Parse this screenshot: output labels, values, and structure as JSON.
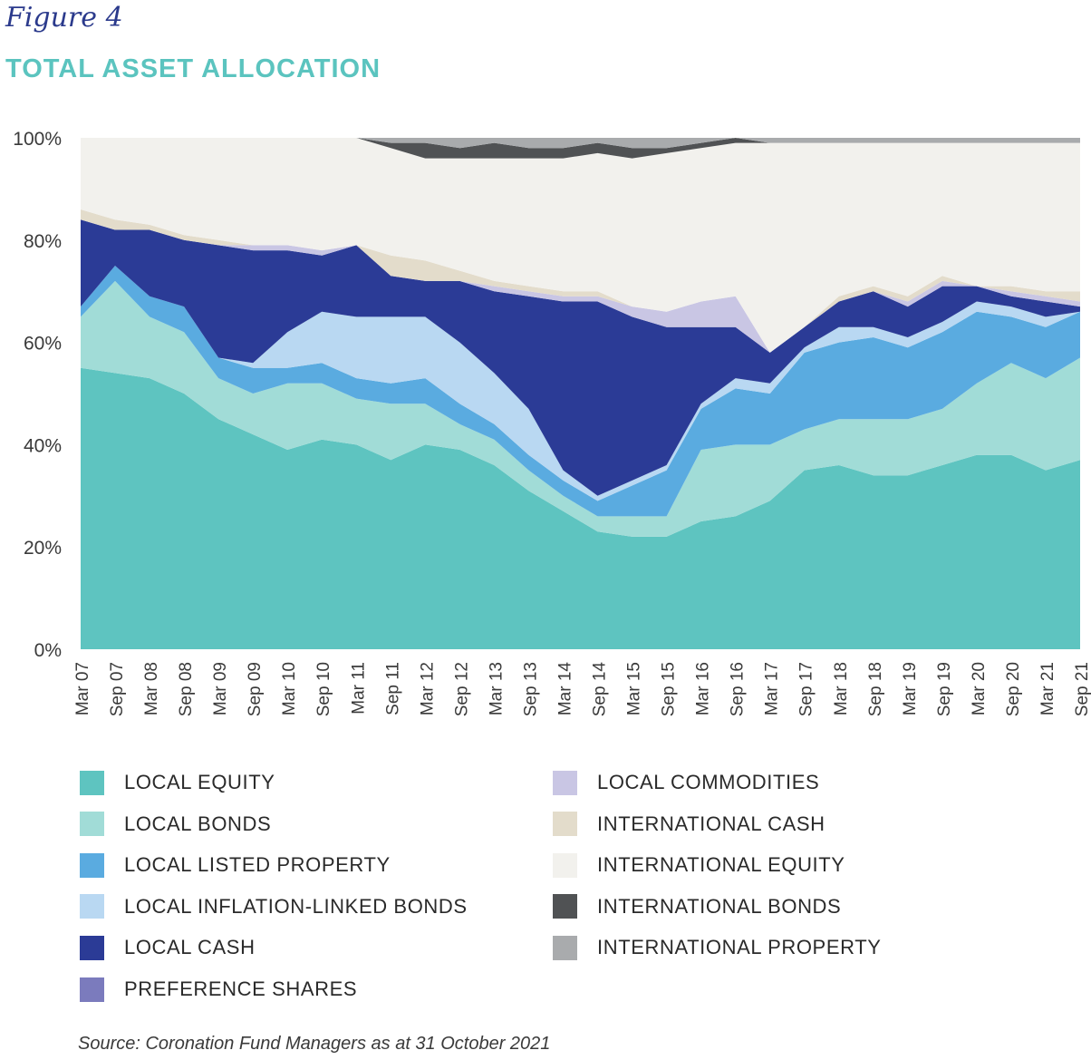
{
  "figure_label": "Figure 4",
  "title": "TOTAL ASSET ALLOCATION",
  "source": "Source: Coronation Fund Managers as at 31 October 2021",
  "chart_data": {
    "type": "area",
    "stacked": true,
    "title": "TOTAL ASSET ALLOCATION",
    "ylim": [
      0,
      100
    ],
    "yticks": [
      "0%",
      "20%",
      "40%",
      "60%",
      "80%",
      "100%"
    ],
    "xticks": [
      "Mar 07",
      "Sep 07",
      "Mar 08",
      "Sep 08",
      "Mar 09",
      "Sep 09",
      "Mar 10",
      "Sep 10",
      "Mar 11",
      "Sep 11",
      "Mar 12",
      "Sep 12",
      "Mar 13",
      "Sep 13",
      "Mar 14",
      "Sep 14",
      "Mar 15",
      "Sep 15",
      "Mar 16",
      "Sep 16",
      "Mar 17",
      "Sep 17",
      "Mar 18",
      "Sep 18",
      "Mar 19",
      "Sep 19",
      "Mar 20",
      "Sep 20",
      "Mar 21",
      "Sep 21"
    ],
    "legend_placement": "bottom",
    "series": [
      {
        "name": "LOCAL EQUITY",
        "color": "#5ec4c0",
        "values": [
          55,
          54,
          53,
          50,
          45,
          42,
          39,
          41,
          40,
          37,
          40,
          39,
          36,
          31,
          27,
          23,
          22,
          22,
          25,
          26,
          29,
          35,
          36,
          34,
          34,
          36,
          38,
          38,
          35,
          37
        ]
      },
      {
        "name": "LOCAL BONDS",
        "color": "#a1dcd7",
        "values": [
          10,
          18,
          12,
          12,
          8,
          8,
          13,
          11,
          9,
          11,
          8,
          5,
          5,
          4,
          3,
          3,
          4,
          4,
          14,
          14,
          11,
          8,
          9,
          11,
          11,
          11,
          14,
          18,
          18,
          20
        ]
      },
      {
        "name": "LOCAL LISTED PROPERTY",
        "color": "#5aabe0",
        "values": [
          2,
          3,
          4,
          5,
          4,
          5,
          3,
          4,
          4,
          4,
          5,
          4,
          3,
          3,
          3,
          3,
          6,
          9,
          8,
          11,
          10,
          15,
          15,
          16,
          14,
          15,
          14,
          9,
          10,
          9
        ]
      },
      {
        "name": "LOCAL INFLATION-LINKED BONDS",
        "color": "#b9d8f2",
        "values": [
          0,
          0,
          0,
          0,
          0,
          1,
          7,
          10,
          12,
          13,
          12,
          12,
          10,
          9,
          2,
          1,
          1,
          1,
          1,
          2,
          2,
          1,
          3,
          2,
          2,
          2,
          2,
          2,
          2,
          0
        ]
      },
      {
        "name": "LOCAL CASH",
        "color": "#2b3b96",
        "values": [
          17,
          7,
          13,
          13,
          22,
          22,
          16,
          11,
          14,
          8,
          7,
          12,
          16,
          22,
          33,
          38,
          32,
          27,
          15,
          10,
          6,
          4,
          5,
          7,
          6,
          7,
          3,
          2,
          3,
          1
        ]
      },
      {
        "name": "PREFERENCE SHARES",
        "color": "#7b7bbd",
        "values": [
          0,
          0,
          0,
          0,
          0,
          0,
          0,
          0,
          0,
          0,
          0,
          0,
          0,
          0,
          0,
          0,
          0,
          0,
          0,
          0,
          0,
          0,
          0,
          0,
          0,
          0,
          0,
          0,
          0,
          0
        ]
      },
      {
        "name": "LOCAL COMMODITIES",
        "color": "#c9c6e4",
        "values": [
          0,
          0,
          0,
          0,
          0,
          1,
          1,
          1,
          0,
          0,
          0,
          0,
          1,
          1,
          1,
          1,
          2,
          3,
          5,
          6,
          0,
          0,
          0,
          0,
          1,
          1,
          0,
          1,
          1,
          1
        ]
      },
      {
        "name": "INTERNATIONAL CASH",
        "color": "#e3dccb",
        "values": [
          2,
          2,
          1,
          1,
          1,
          0,
          0,
          0,
          0,
          4,
          4,
          2,
          1,
          1,
          1,
          1,
          0,
          0,
          0,
          0,
          0,
          0,
          1,
          1,
          1,
          1,
          0,
          1,
          1,
          2
        ]
      },
      {
        "name": "INTERNATIONAL EQUITY",
        "color": "#f2f1ed",
        "values": [
          16,
          16,
          17,
          19,
          20,
          21,
          21,
          22,
          21,
          21,
          20,
          22,
          24,
          25,
          26,
          27,
          29,
          31,
          30,
          30,
          41,
          36,
          30,
          28,
          30,
          26,
          28,
          28,
          29,
          29
        ]
      },
      {
        "name": "INTERNATIONAL BONDS",
        "color": "#505254",
        "values": [
          0,
          0,
          0,
          0,
          0,
          0,
          0,
          0,
          0,
          1,
          3,
          2,
          3,
          2,
          2,
          2,
          2,
          1,
          1,
          1,
          0,
          0,
          0,
          0,
          0,
          0,
          0,
          0,
          0,
          0
        ]
      },
      {
        "name": "INTERNATIONAL PROPERTY",
        "color": "#a9abad",
        "values": [
          0,
          0,
          0,
          0,
          1,
          0,
          0,
          0,
          0,
          1,
          1,
          2,
          1,
          2,
          2,
          1,
          2,
          2,
          1,
          0,
          1,
          1,
          1,
          1,
          1,
          1,
          1,
          1,
          1,
          1
        ]
      }
    ]
  }
}
